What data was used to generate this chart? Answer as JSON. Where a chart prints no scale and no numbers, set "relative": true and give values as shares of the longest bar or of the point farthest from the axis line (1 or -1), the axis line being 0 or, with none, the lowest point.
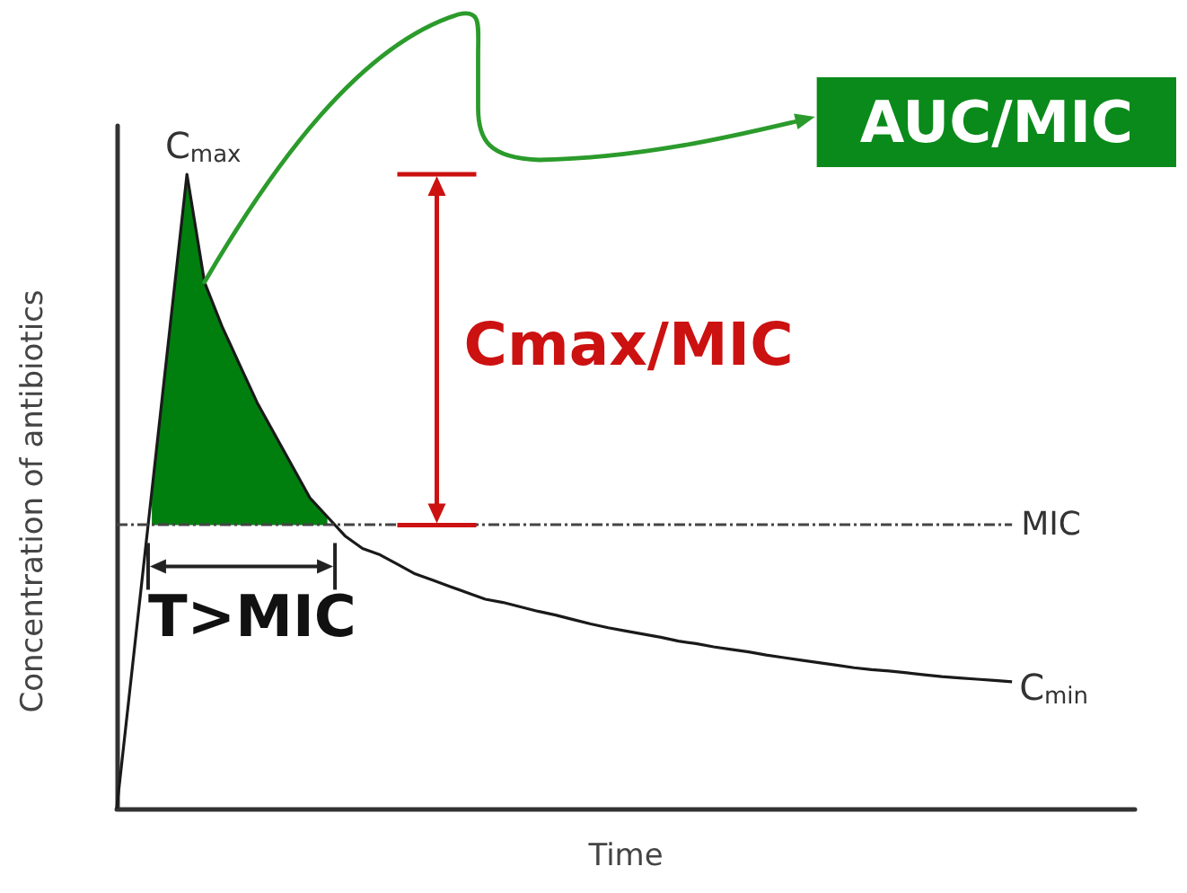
{
  "chart_data": {
    "type": "line",
    "relative": true,
    "xlabel": "Time",
    "ylabel": "Concentration of antibiotics",
    "categories": [
      null,
      null,
      null,
      null,
      null,
      null,
      null,
      null,
      null,
      null,
      null,
      null,
      null,
      null,
      null,
      null,
      null,
      null,
      null,
      null,
      null,
      null,
      null,
      null,
      null,
      null,
      null,
      null,
      null,
      null,
      null,
      null,
      null,
      null,
      null,
      null,
      null,
      null,
      null,
      null,
      null,
      null,
      null,
      null,
      null,
      null,
      null,
      null,
      null,
      null,
      null,
      null,
      null,
      null,
      null,
      null,
      null,
      null,
      null
    ],
    "series": [
      {
        "color": "#1a1a1a",
        "values": [
          0,
          0.25,
          0.5,
          0.75,
          1,
          0.83,
          0.76,
          0.7,
          0.64,
          0.59,
          0.54,
          0.49,
          0.46,
          0.43,
          0.41,
          0.4,
          0.385,
          0.37,
          0.36,
          0.35,
          0.34,
          0.33,
          0.325,
          0.318,
          0.311,
          0.305,
          0.298,
          0.291,
          0.285,
          0.28,
          0.275,
          0.27,
          0.264,
          0.26,
          0.255,
          0.251,
          0.247,
          0.242,
          0.238,
          0.234,
          0.23,
          0.226,
          0.222,
          0.219,
          0.217,
          0.214,
          0.211,
          0.208,
          0.206,
          0.204,
          0.202,
          0.2,
          null,
          null,
          null,
          null,
          null,
          null,
          null
        ]
      },
      {
        "type": "area",
        "color": "#007f0e",
        "values": [
          null,
          null,
          0.5,
          0.75,
          1,
          0.83,
          0.76,
          0.7,
          0.64,
          0.59,
          0.54,
          0.49,
          0.46,
          null,
          null,
          null,
          null,
          null,
          null,
          null,
          null,
          null,
          null,
          null,
          null,
          null,
          null,
          null,
          null,
          null,
          null,
          null,
          null,
          null,
          null,
          null,
          null,
          null,
          null,
          null,
          null,
          null,
          null,
          null,
          null,
          null,
          null,
          null,
          null,
          null,
          null,
          null,
          null,
          null,
          null,
          null,
          null,
          null,
          null
        ]
      }
    ],
    "ref_lines": [
      {
        "axis": "y",
        "value": 0.447,
        "label": "MIC",
        "color": "#444444",
        "line_style": "dashed"
      }
    ],
    "annotations": [
      "C$_{max}$",
      "C$_{min}$",
      "T>MIC",
      "Cmax/MIC",
      "AUC/MIC"
    ],
    "marker": "none",
    "line_style": "solid"
  }
}
